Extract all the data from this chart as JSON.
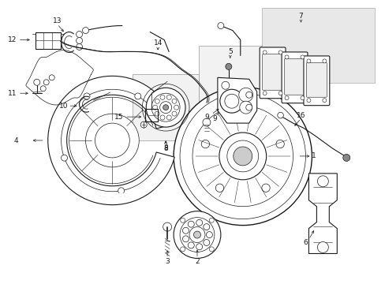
{
  "background_color": "#ffffff",
  "line_color": "#1a1a1a",
  "box7_color": "#e8e8e8",
  "box5_color": "#f2f2f2",
  "box8_color": "#f2f2f2",
  "figsize": [
    4.89,
    3.6
  ],
  "dpi": 100,
  "label_positions": {
    "1": [
      3.62,
      1.72,
      3.78,
      1.72
    ],
    "2": [
      2.46,
      0.46,
      2.46,
      0.3
    ],
    "3": [
      2.12,
      0.46,
      2.12,
      0.3
    ],
    "4": [
      0.28,
      1.78,
      0.14,
      1.78
    ],
    "5": [
      2.72,
      2.72,
      2.72,
      2.88
    ],
    "6": [
      4.1,
      0.72,
      4.1,
      0.56
    ],
    "7": [
      3.82,
      3.22,
      3.82,
      3.38
    ],
    "8": [
      2.22,
      1.58,
      2.22,
      1.42
    ],
    "9": [
      2.62,
      2.08,
      2.72,
      2.08
    ],
    "10": [
      1.02,
      2.12,
      0.88,
      2.12
    ],
    "11": [
      0.28,
      2.38,
      0.14,
      2.38
    ],
    "12": [
      0.28,
      3.08,
      0.14,
      3.08
    ],
    "13": [
      0.62,
      3.18,
      0.62,
      3.32
    ],
    "14": [
      1.92,
      2.88,
      1.92,
      3.02
    ],
    "15": [
      1.72,
      2.08,
      1.58,
      2.08
    ],
    "16": [
      3.78,
      1.98,
      3.78,
      2.12
    ]
  }
}
